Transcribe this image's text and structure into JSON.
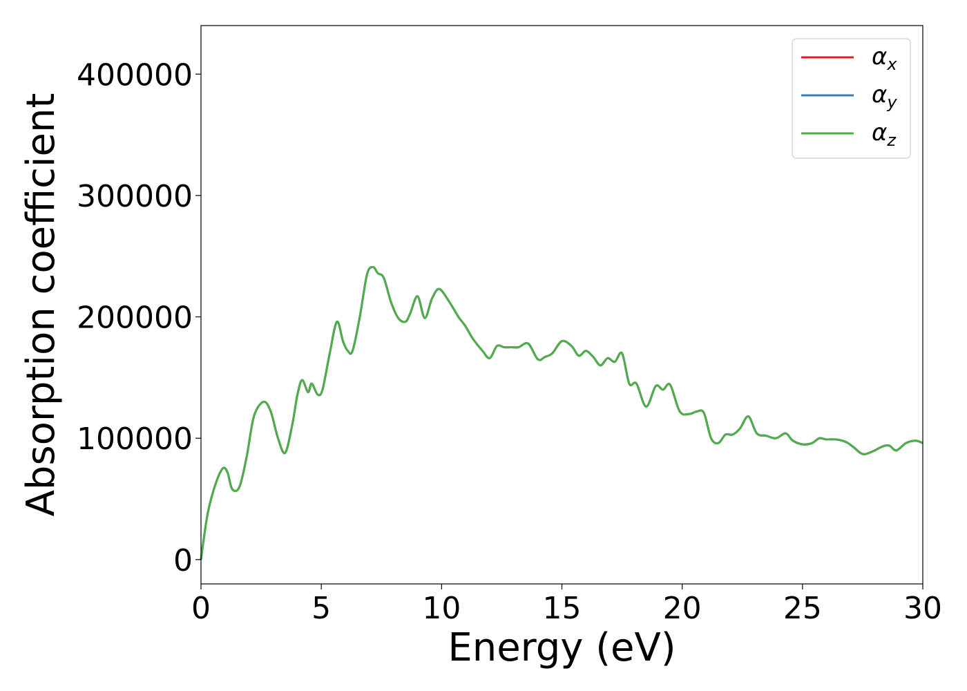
{
  "chart_data": {
    "type": "line",
    "title": "",
    "xlabel": "Energy (eV)",
    "ylabel": "Absorption coefficient",
    "xlim": [
      0,
      30
    ],
    "ylim": [
      -20000,
      440000
    ],
    "xticks": [
      0,
      5,
      10,
      15,
      20,
      25,
      30
    ],
    "xtick_labels": [
      "0",
      "5",
      "10",
      "15",
      "20",
      "25",
      "30"
    ],
    "yticks": [
      0,
      100000,
      200000,
      300000,
      400000
    ],
    "ytick_labels": [
      "0",
      "100000",
      "200000",
      "300000",
      "400000"
    ],
    "grid": false,
    "legend_position": "top-right",
    "series": [
      {
        "name": "α_x",
        "label_main": "α",
        "label_sub": "x",
        "color": "#e41a1c"
      },
      {
        "name": "α_y",
        "label_main": "α",
        "label_sub": "y",
        "color": "#377eb8"
      },
      {
        "name": "α_z",
        "label_main": "α",
        "label_sub": "z",
        "color": "#4daf4a"
      }
    ],
    "x": [
      0,
      0.1,
      0.3,
      0.6,
      0.9,
      1.1,
      1.3,
      1.6,
      1.9,
      2.2,
      2.6,
      2.9,
      3.2,
      3.5,
      3.8,
      4.0,
      4.2,
      4.45,
      4.6,
      4.85,
      5.05,
      5.35,
      5.65,
      5.9,
      6.1,
      6.3,
      6.6,
      6.9,
      7.15,
      7.35,
      7.6,
      7.9,
      8.2,
      8.5,
      8.7,
      9.0,
      9.3,
      9.6,
      9.9,
      10.3,
      10.7,
      11.0,
      11.3,
      11.7,
      12.0,
      12.3,
      12.6,
      12.9,
      13.2,
      13.6,
      14.0,
      14.3,
      14.6,
      15.0,
      15.4,
      15.7,
      16.0,
      16.3,
      16.6,
      16.9,
      17.2,
      17.5,
      17.8,
      18.1,
      18.5,
      18.9,
      19.2,
      19.5,
      19.9,
      20.3,
      20.6,
      20.9,
      21.2,
      21.5,
      21.8,
      22.1,
      22.4,
      22.75,
      23.1,
      23.5,
      23.9,
      24.3,
      24.6,
      25.0,
      25.4,
      25.7,
      26.0,
      26.4,
      26.8,
      27.1,
      27.5,
      27.9,
      28.3,
      28.6,
      28.9,
      29.3,
      29.7,
      30.0
    ],
    "y_common": [
      0,
      15000,
      40000,
      62000,
      75000,
      72000,
      58000,
      60000,
      85000,
      118000,
      130000,
      122000,
      100000,
      88000,
      112000,
      135000,
      148000,
      138000,
      145000,
      136000,
      140000,
      170000,
      196000,
      180000,
      172000,
      172000,
      200000,
      235000,
      241000,
      236000,
      232000,
      212000,
      199000,
      196000,
      203000,
      217000,
      199000,
      215000,
      223000,
      213000,
      200000,
      192000,
      182000,
      172000,
      166000,
      176000,
      175000,
      175000,
      175000,
      178000,
      165000,
      167000,
      170000,
      180000,
      176000,
      168000,
      172000,
      167000,
      160000,
      166000,
      163000,
      170000,
      145000,
      145000,
      126000,
      143000,
      140000,
      144000,
      122000,
      120000,
      122000,
      121000,
      100000,
      96000,
      103000,
      103000,
      108000,
      118000,
      104000,
      102000,
      100000,
      104000,
      98000,
      95000,
      96000,
      100000,
      99000,
      99000,
      97000,
      93000,
      87000,
      89000,
      93000,
      94000,
      90000,
      96000,
      98000,
      96000
    ]
  }
}
